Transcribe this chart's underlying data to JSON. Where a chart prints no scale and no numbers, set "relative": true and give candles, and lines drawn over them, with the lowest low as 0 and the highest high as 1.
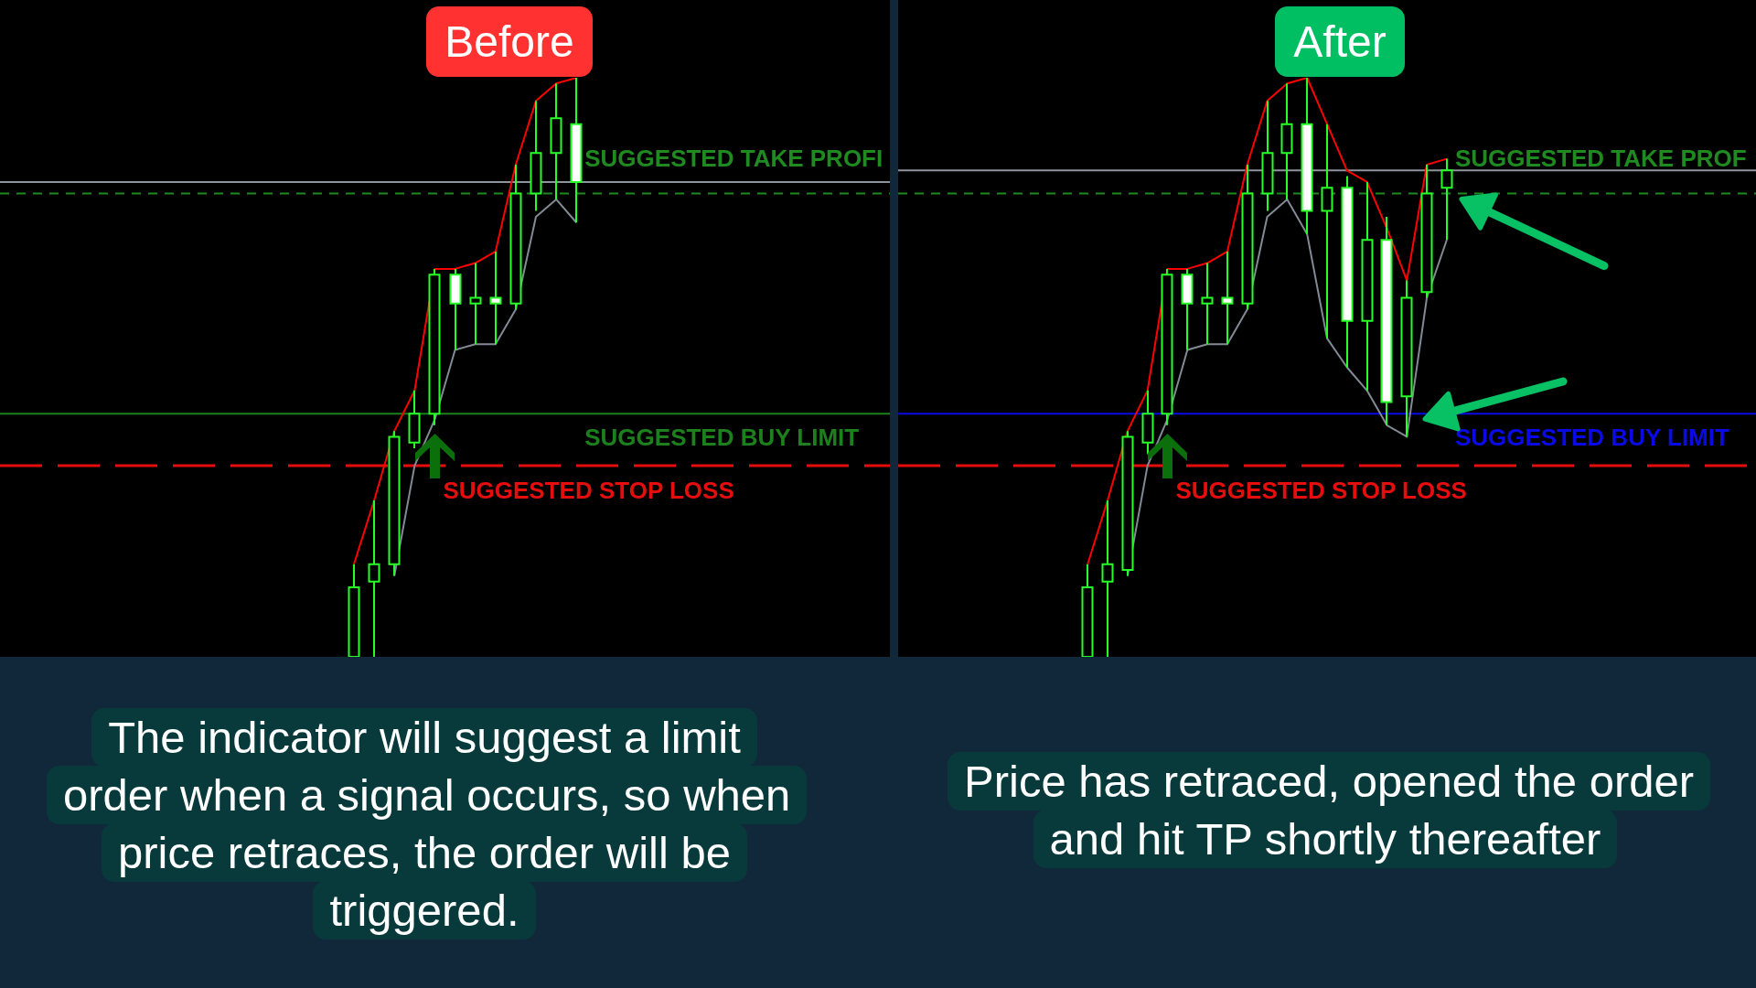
{
  "chart_data": [
    {
      "type": "candlestick",
      "title": "Before",
      "relative": true,
      "color": "#26ff26",
      "categories": [
        null,
        null,
        null,
        null,
        null,
        null,
        null,
        null,
        null,
        null,
        null,
        null,
        null,
        null,
        null,
        null,
        null,
        null,
        null,
        null,
        null,
        null,
        null,
        null,
        null,
        null,
        null,
        null,
        null,
        null,
        null,
        null,
        null,
        null,
        null,
        null,
        null,
        null,
        null,
        null,
        null,
        null,
        null,
        null
      ],
      "ohlc": [
        null,
        null,
        null,
        null,
        null,
        null,
        null,
        null,
        null,
        null,
        null,
        null,
        null,
        null,
        null,
        null,
        null,
        [
          0,
          0.16,
          0,
          0.12
        ],
        [
          0.13,
          0.27,
          0,
          0.16
        ],
        [
          0.16,
          0.39,
          0.14,
          0.38
        ],
        [
          0.37,
          0.46,
          0.36,
          0.42
        ],
        [
          0.42,
          0.67,
          0.4,
          0.66
        ],
        [
          0.66,
          0.67,
          0.53,
          0.61
        ],
        [
          0.61,
          0.68,
          0.54,
          0.62
        ],
        [
          0.62,
          0.7,
          0.54,
          0.61
        ],
        [
          0.61,
          0.85,
          0.6,
          0.8
        ],
        [
          0.8,
          0.96,
          0.77,
          0.87
        ],
        [
          0.87,
          0.99,
          0.79,
          0.93
        ],
        [
          0.92,
          1,
          0.75,
          0.82
        ],
        null,
        null,
        null,
        null,
        null,
        null,
        null,
        null,
        null,
        null,
        null,
        null,
        null,
        null,
        null
      ],
      "series": [
        {
          "type": "line",
          "color": "#ff0000",
          "values": [
            null,
            null,
            null,
            null,
            null,
            null,
            null,
            null,
            null,
            null,
            null,
            null,
            null,
            null,
            null,
            null,
            null,
            0.16,
            0.27,
            0.39,
            0.46,
            0.67,
            0.67,
            0.68,
            0.7,
            0.85,
            0.96,
            0.99,
            1,
            null,
            null,
            null,
            null,
            null,
            null,
            null,
            null,
            null,
            null,
            null,
            null,
            null,
            null,
            null
          ]
        },
        {
          "type": "line",
          "color": "#838a96",
          "values": [
            null,
            null,
            null,
            null,
            null,
            null,
            null,
            null,
            null,
            null,
            null,
            null,
            null,
            null,
            null,
            null,
            null,
            null,
            null,
            0.14,
            0.33,
            0.41,
            0.53,
            0.54,
            0.54,
            0.6,
            0.76,
            0.79,
            0.75,
            null,
            null,
            null,
            null,
            null,
            null,
            null,
            null,
            null,
            null,
            null,
            null,
            null,
            null,
            null
          ]
        }
      ],
      "ref_lines": [
        {
          "axis": "y",
          "value": 0.8,
          "label": "SUGGESTED TAKE PROFI",
          "color": "#1f8a1f",
          "line_style": "dashed"
        },
        {
          "axis": "y",
          "value": 0.82,
          "color": "#8e949e"
        },
        {
          "axis": "y",
          "value": 0.42,
          "label": "SUGGESTED BUY LIMIT",
          "color": "#1c801c"
        },
        {
          "axis": "y",
          "value": 0.33,
          "label": "SUGGESTED STOP LOSS",
          "color": "#e60d0d",
          "line_style": "dashed"
        }
      ],
      "annotations": [
        "The indicator will suggest a limit order when a signal occurs, so when price retraces, the order will be triggered."
      ]
    },
    {
      "type": "candlestick",
      "title": "After",
      "relative": true,
      "color": "#26ff26",
      "categories": [
        null,
        null,
        null,
        null,
        null,
        null,
        null,
        null,
        null,
        null,
        null,
        null,
        null,
        null,
        null,
        null,
        null,
        null,
        null,
        null,
        null,
        null,
        null,
        null,
        null,
        null,
        null,
        null,
        null,
        null,
        null,
        null,
        null,
        null,
        null,
        null,
        null,
        null,
        null,
        null,
        null,
        null,
        null
      ],
      "ohlc": [
        null,
        null,
        null,
        null,
        null,
        null,
        null,
        null,
        null,
        [
          0,
          0.16,
          0,
          0.12
        ],
        [
          0.13,
          0.27,
          0,
          0.16
        ],
        [
          0.15,
          0.39,
          0.14,
          0.38
        ],
        [
          0.37,
          0.46,
          0.35,
          0.42
        ],
        [
          0.42,
          0.67,
          0.4,
          0.66
        ],
        [
          0.66,
          0.67,
          0.53,
          0.61
        ],
        [
          0.61,
          0.68,
          0.54,
          0.62
        ],
        [
          0.62,
          0.7,
          0.54,
          0.61
        ],
        [
          0.61,
          0.85,
          0.6,
          0.8
        ],
        [
          0.8,
          0.96,
          0.77,
          0.87
        ],
        [
          0.87,
          0.99,
          0.79,
          0.92
        ],
        [
          0.92,
          1,
          0.73,
          0.77
        ],
        [
          0.77,
          0.92,
          0.55,
          0.81
        ],
        [
          0.81,
          0.83,
          0.5,
          0.58
        ],
        [
          0.58,
          0.82,
          0.46,
          0.72
        ],
        [
          0.72,
          0.76,
          0.4,
          0.44
        ],
        [
          0.45,
          0.65,
          0.38,
          0.62
        ],
        [
          0.63,
          0.85,
          0.62,
          0.8
        ],
        [
          0.81,
          0.86,
          0.72,
          0.84
        ],
        null,
        null,
        null,
        null,
        null,
        null,
        null,
        null,
        null,
        null,
        null,
        null,
        null,
        null,
        null
      ],
      "series": [
        {
          "type": "line",
          "color": "#ff0000",
          "values": [
            null,
            null,
            null,
            null,
            null,
            null,
            null,
            null,
            null,
            0.16,
            0.27,
            0.39,
            0.46,
            0.67,
            0.67,
            0.68,
            0.7,
            0.85,
            0.96,
            0.99,
            1,
            0.92,
            0.84,
            0.82,
            0.74,
            0.65,
            0.85,
            0.86,
            null,
            null,
            null,
            null,
            null,
            null,
            null,
            null,
            null,
            null,
            null,
            null,
            null,
            null,
            null
          ]
        },
        {
          "type": "line",
          "color": "#838a96",
          "values": [
            null,
            null,
            null,
            null,
            null,
            null,
            null,
            null,
            null,
            null,
            null,
            0.14,
            0.33,
            0.41,
            0.53,
            0.54,
            0.54,
            0.6,
            0.76,
            0.79,
            0.73,
            0.55,
            0.5,
            0.46,
            0.4,
            0.38,
            0.62,
            0.72,
            null,
            null,
            null,
            null,
            null,
            null,
            null,
            null,
            null,
            null,
            null,
            null,
            null,
            null,
            null
          ]
        }
      ],
      "ref_lines": [
        {
          "axis": "y",
          "value": 0.8,
          "label": "SUGGESTED TAKE PROF",
          "color": "#1f8a1f",
          "line_style": "dashed"
        },
        {
          "axis": "y",
          "value": 0.84,
          "color": "#8e949e"
        },
        {
          "axis": "y",
          "value": 0.42,
          "label": "SUGGESTED BUY LIMIT",
          "color": "#0a0ae6"
        },
        {
          "axis": "y",
          "value": 0.33,
          "label": "SUGGESTED STOP LOSS",
          "color": "#e60d0d",
          "line_style": "dashed"
        }
      ],
      "annotations": [
        "Price has retraced, opened the order and hit TP shortly thereafter"
      ]
    }
  ]
}
